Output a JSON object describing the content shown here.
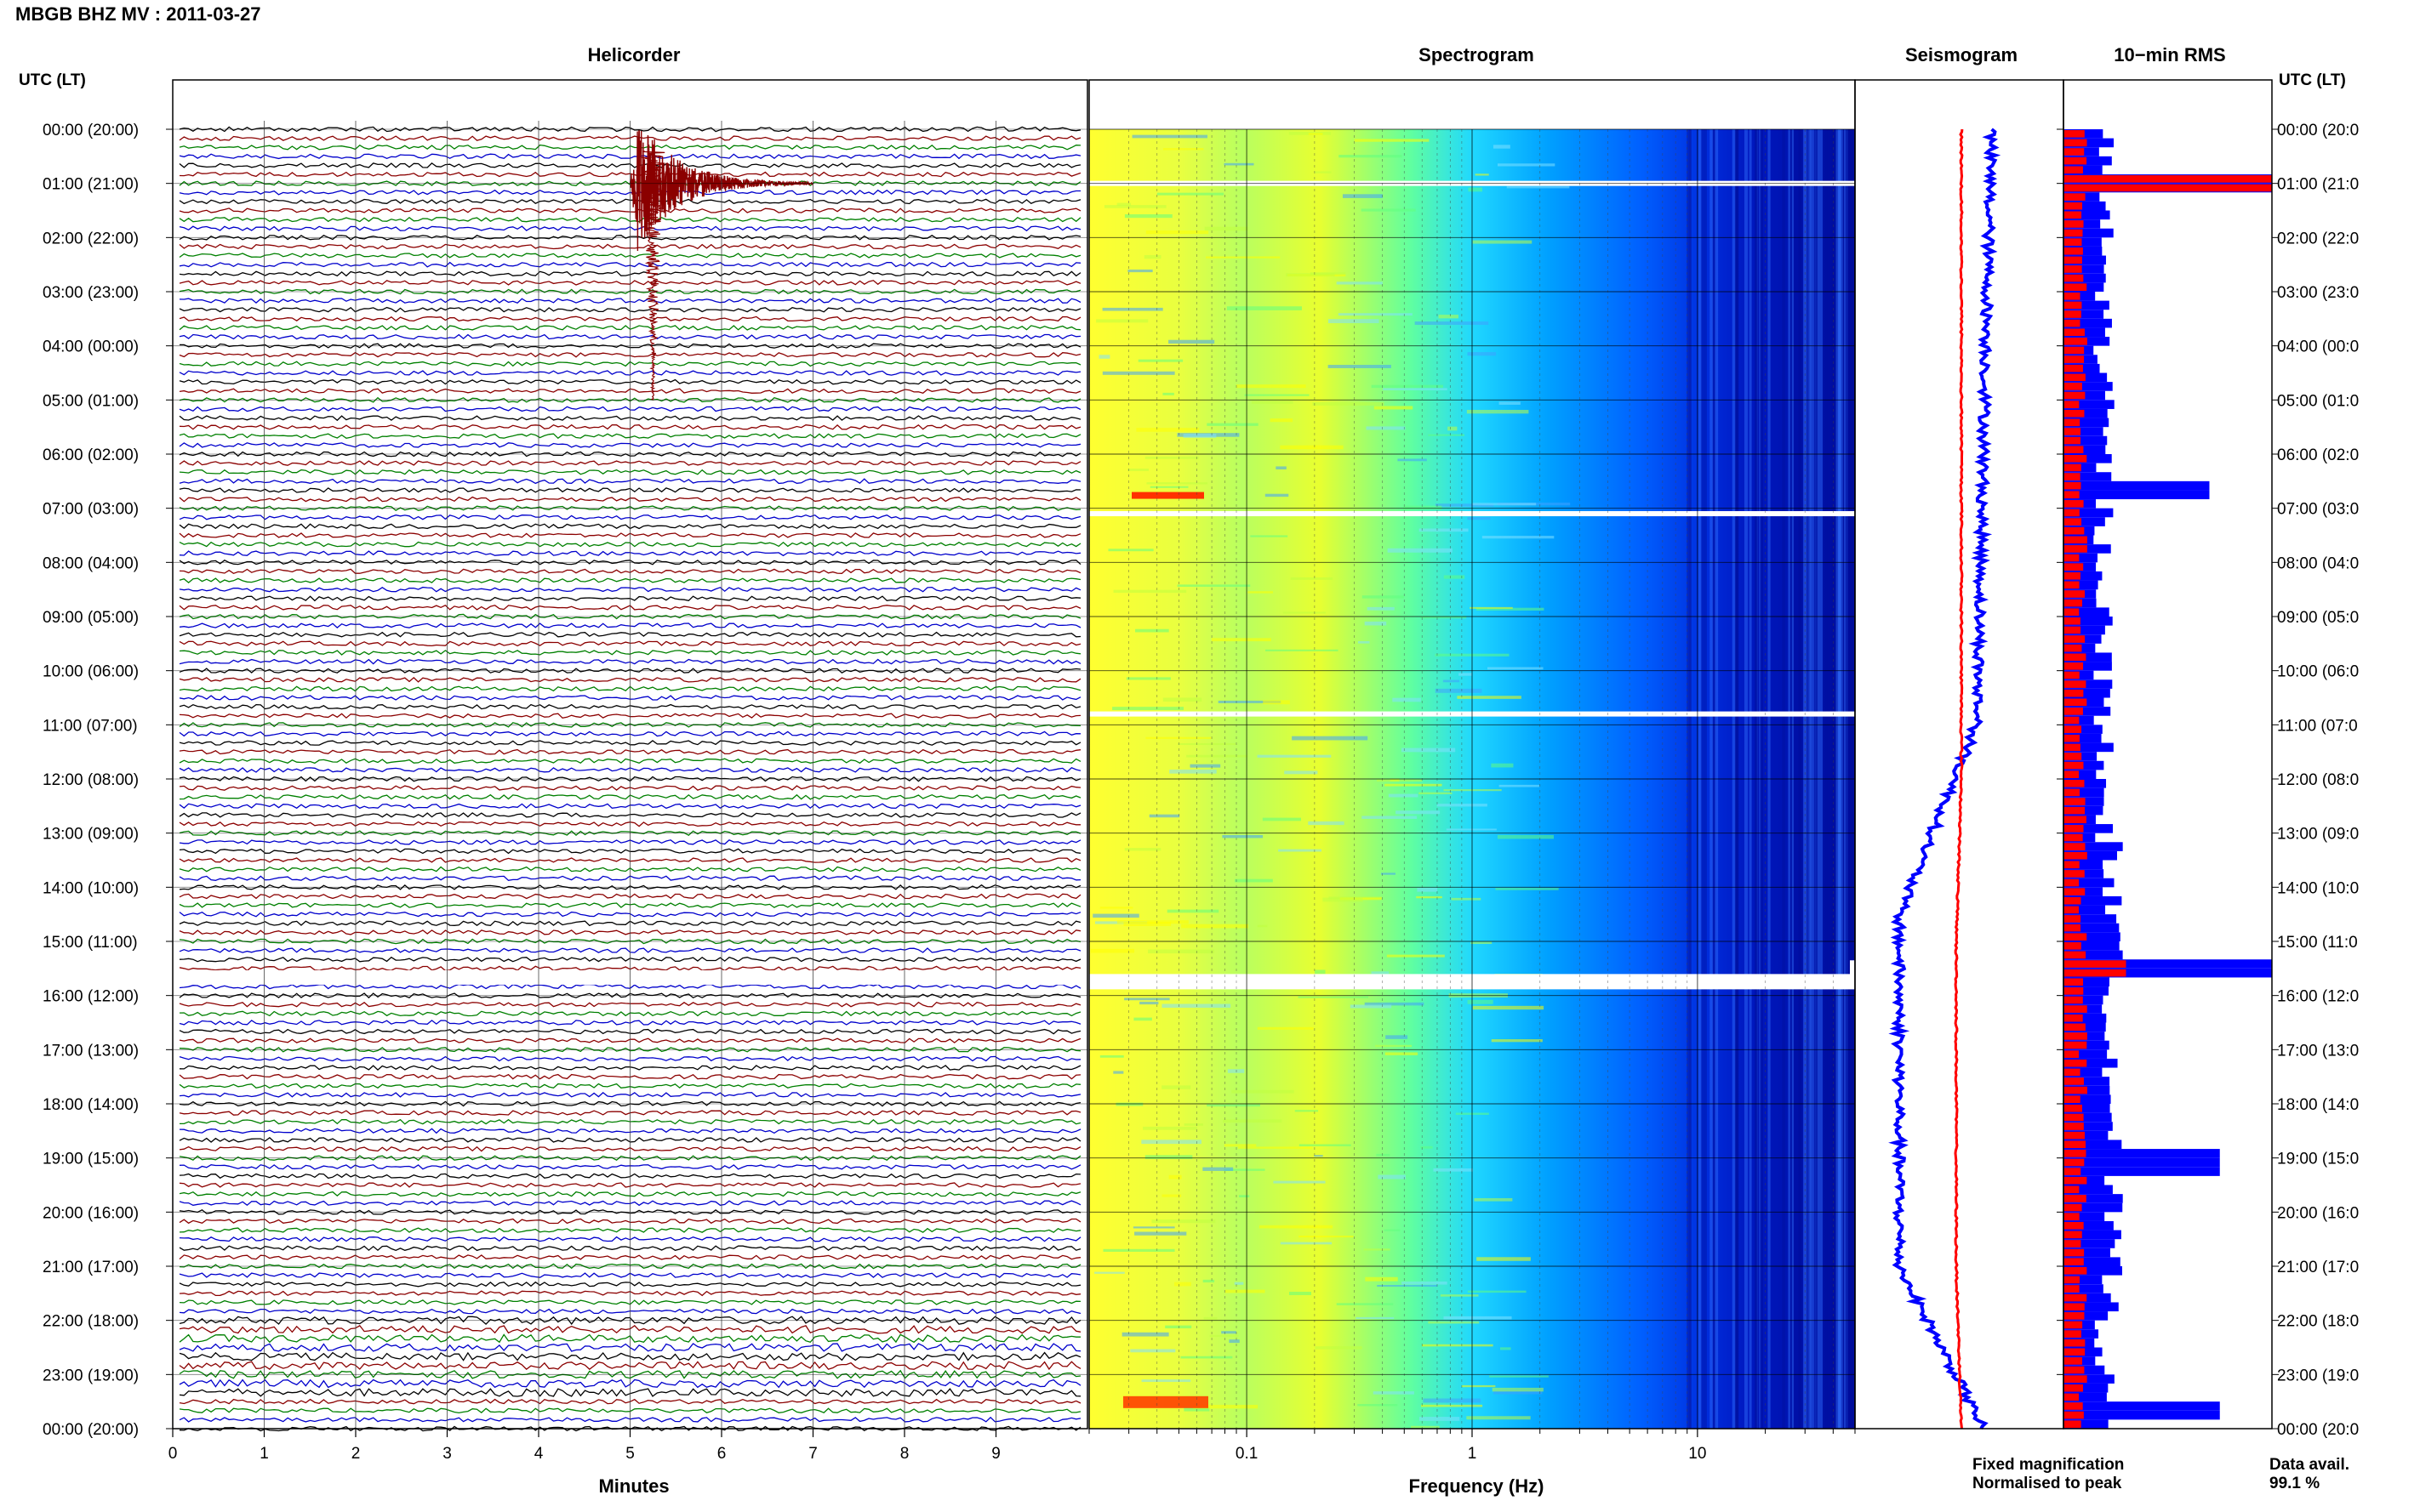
{
  "header": {
    "title": "MBGB BHZ MV : 2011-03-27"
  },
  "panels": {
    "helicorder": "Helicorder",
    "spectrogram": "Spectrogram",
    "seismogram": "Seismogram",
    "rms": "10−min RMS"
  },
  "axis_left_label": "UTC (LT)",
  "axis_right_label": "UTC (LT)",
  "time_labels": [
    "00:00 (20:00)",
    "01:00 (21:00)",
    "02:00 (22:00)",
    "03:00 (23:00)",
    "04:00 (00:00)",
    "05:00 (01:00)",
    "06:00 (02:00)",
    "07:00 (03:00)",
    "08:00 (04:00)",
    "09:00 (05:00)",
    "10:00 (06:00)",
    "11:00 (07:00)",
    "12:00 (08:00)",
    "13:00 (09:00)",
    "14:00 (10:00)",
    "15:00 (11:00)",
    "16:00 (12:00)",
    "17:00 (13:00)",
    "18:00 (14:00)",
    "19:00 (15:00)",
    "20:00 (16:00)",
    "21:00 (17:00)",
    "22:00 (18:00)",
    "23:00 (19:00)",
    "00:00 (20:00)"
  ],
  "right_time_labels": [
    "00:00 (20:0",
    "01:00 (21:0",
    "02:00 (22:0",
    "03:00 (23:0",
    "04:00 (00:0",
    "05:00 (01:0",
    "06:00 (02:0",
    "07:00 (03:0",
    "08:00 (04:0",
    "09:00 (05:0",
    "10:00 (06:0",
    "11:00 (07:0",
    "12:00 (08:0",
    "13:00 (09:0",
    "14:00 (10:0",
    "15:00 (11:0",
    "16:00 (12:0",
    "17:00 (13:0",
    "18:00 (14:0",
    "19:00 (15:0",
    "20:00 (16:0",
    "21:00 (17:0",
    "22:00 (18:0",
    "23:00 (19:0",
    "00:00 (20:0"
  ],
  "legend": {
    "fixed": "Fixed magnification",
    "normalised": "Normalised to peak"
  },
  "data_avail": {
    "label": "Data avail.",
    "value": "99.1 %"
  },
  "colors": {
    "trace_cycle": [
      "#000000",
      "#8b0000",
      "#008000",
      "#0000cc"
    ],
    "fixed": "#0000ff",
    "normalised": "#ff0000"
  },
  "chart_data": [
    {
      "type": "line",
      "name": "helicorder",
      "xlabel": "Minutes",
      "x_ticks": [
        0,
        1,
        2,
        3,
        4,
        5,
        6,
        7,
        8,
        9
      ],
      "xlim": [
        0,
        10
      ],
      "rows_per_hour": 6,
      "hours": 24,
      "event": {
        "hour": 0,
        "minute_start": 5.0,
        "minute_end": 7.0,
        "amplitude": "large"
      },
      "data_gaps": [
        {
          "hour": 15,
          "row": 3
        }
      ]
    },
    {
      "type": "heatmap",
      "name": "spectrogram",
      "xlabel": "Frequency (Hz)",
      "x_scale": "log",
      "x_tick_labels": [
        "0.1",
        "1",
        "10"
      ],
      "xlim": [
        0.02,
        50
      ],
      "colormap": [
        "#ffff00",
        "#80ff80",
        "#00ffff",
        "#0080ff",
        "#0000ff",
        "#00008b"
      ],
      "gaps_hours": [
        1.0,
        7.1,
        10.8,
        15.65
      ]
    },
    {
      "type": "line",
      "name": "seismogram",
      "series": [
        {
          "name": "Fixed magnification",
          "color": "#0000ff"
        },
        {
          "name": "Normalised to peak",
          "color": "#ff0000"
        }
      ]
    },
    {
      "type": "bar",
      "name": "10-min RMS",
      "orientation": "horizontal",
      "series": [
        {
          "name": "Fixed magnification",
          "color": "#0000ff"
        },
        {
          "name": "Normalised to peak",
          "color": "#ff0000"
        }
      ],
      "spikes": [
        {
          "hour": 0.95,
          "fixed": "max",
          "normalised": "max"
        },
        {
          "hour": 6.6,
          "fixed": 0.7
        },
        {
          "hour": 15.4,
          "fixed": 1.0,
          "normalised": 0.3
        },
        {
          "hour": 19.0,
          "fixed": 0.75
        },
        {
          "hour": 23.6,
          "fixed": 0.75
        }
      ]
    }
  ]
}
